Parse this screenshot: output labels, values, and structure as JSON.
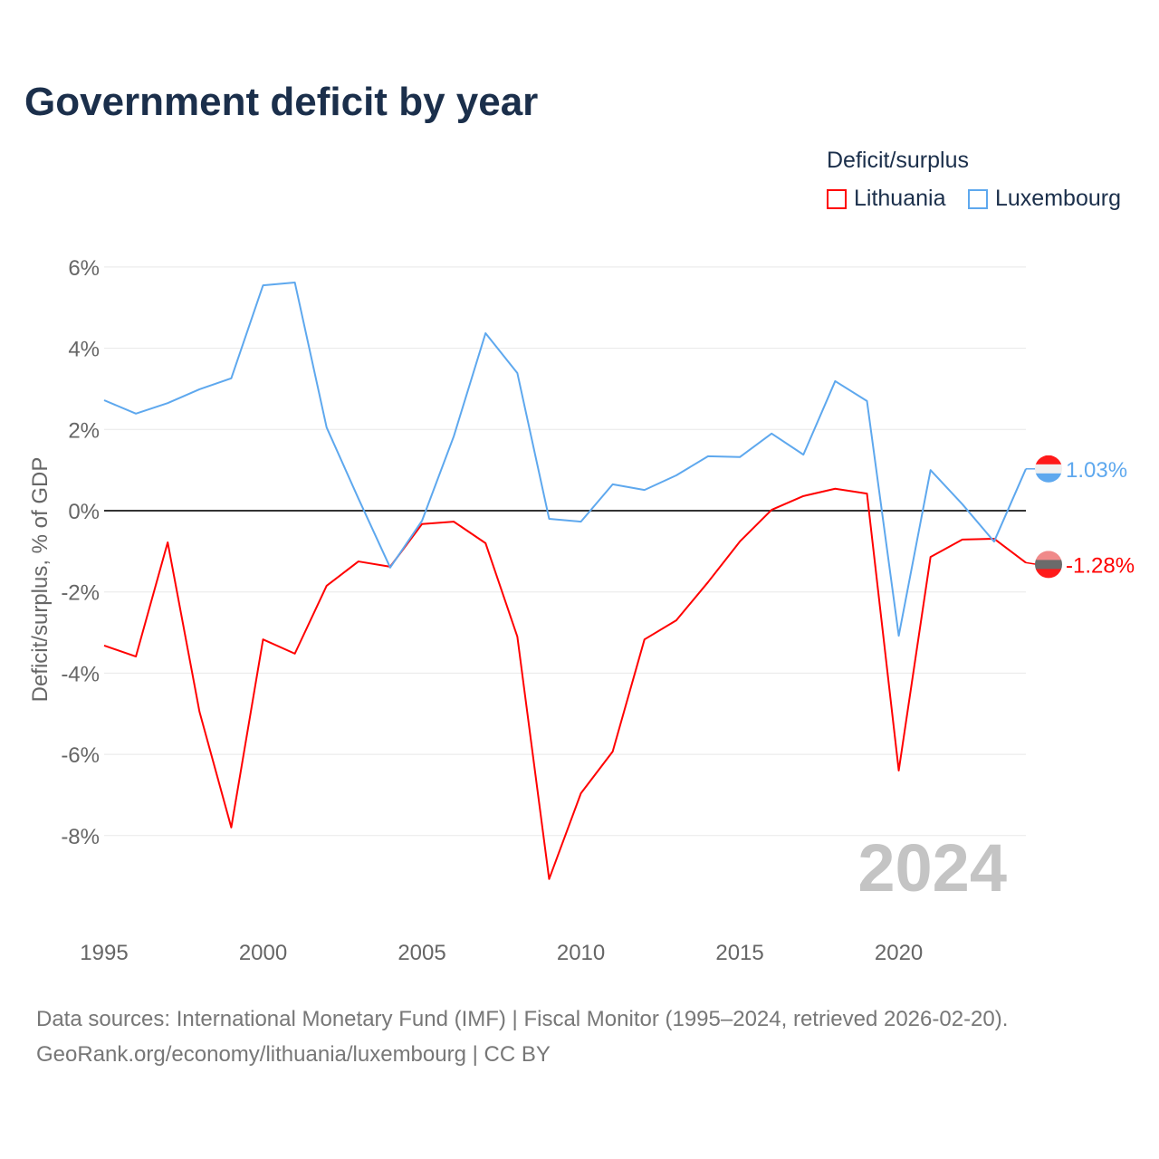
{
  "chart_data": {
    "type": "line",
    "title": "Government deficit by year",
    "ylabel": "Deficit/surplus, % of GDP",
    "xlabel": "",
    "legend_title": "Deficit/surplus",
    "legend_placement": "top-right",
    "ylim": [
      -10,
      6
    ],
    "y_ticks": [
      6,
      4,
      2,
      0,
      -2,
      -4,
      -6,
      -8
    ],
    "y_tick_labels": [
      "6%",
      "4%",
      "2%",
      "0%",
      "-2%",
      "-4%",
      "-6%",
      "-8%"
    ],
    "x_ticks": [
      1995,
      2000,
      2005,
      2010,
      2015,
      2020
    ],
    "x_tick_labels": [
      "1995",
      "2000",
      "2005",
      "2010",
      "2015",
      "2020"
    ],
    "xlim": [
      1995,
      2024
    ],
    "grid": true,
    "year_watermark": "2024",
    "x": [
      1995,
      1996,
      1997,
      1998,
      1999,
      2000,
      2001,
      2002,
      2003,
      2004,
      2005,
      2006,
      2007,
      2008,
      2009,
      2010,
      2011,
      2012,
      2013,
      2014,
      2015,
      2016,
      2017,
      2018,
      2019,
      2020,
      2021,
      2022,
      2023,
      2024
    ],
    "series": [
      {
        "name": "Lithuania",
        "color": "#ff0000",
        "end_label": "-1.28%",
        "values": [
          -3.32,
          -3.59,
          -0.78,
          -4.95,
          -7.8,
          -3.17,
          -3.52,
          -1.85,
          -1.25,
          -1.38,
          -0.33,
          -0.27,
          -0.8,
          -3.1,
          -9.07,
          -6.96,
          -5.93,
          -3.17,
          -2.7,
          -1.76,
          -0.76,
          0.02,
          0.36,
          0.54,
          0.42,
          -6.4,
          -1.14,
          -0.71,
          -0.69,
          -1.28
        ]
      },
      {
        "name": "Luxembourg",
        "color": "#5ea8ee",
        "end_label": "1.03%",
        "values": [
          2.72,
          2.39,
          2.65,
          2.99,
          3.26,
          5.55,
          5.62,
          2.05,
          0.3,
          -1.4,
          -0.25,
          1.83,
          4.37,
          3.39,
          -0.2,
          -0.27,
          0.65,
          0.51,
          0.87,
          1.34,
          1.32,
          1.9,
          1.38,
          3.19,
          2.7,
          -3.08,
          1.0,
          0.16,
          -0.76,
          1.03
        ]
      }
    ]
  },
  "source": {
    "line1": "Data sources: International Monetary Fund (IMF) | Fiscal Monitor (1995–2024, retrieved 2026-02-20).",
    "line2": "GeoRank.org/economy/lithuania/luxembourg | CC BY"
  }
}
